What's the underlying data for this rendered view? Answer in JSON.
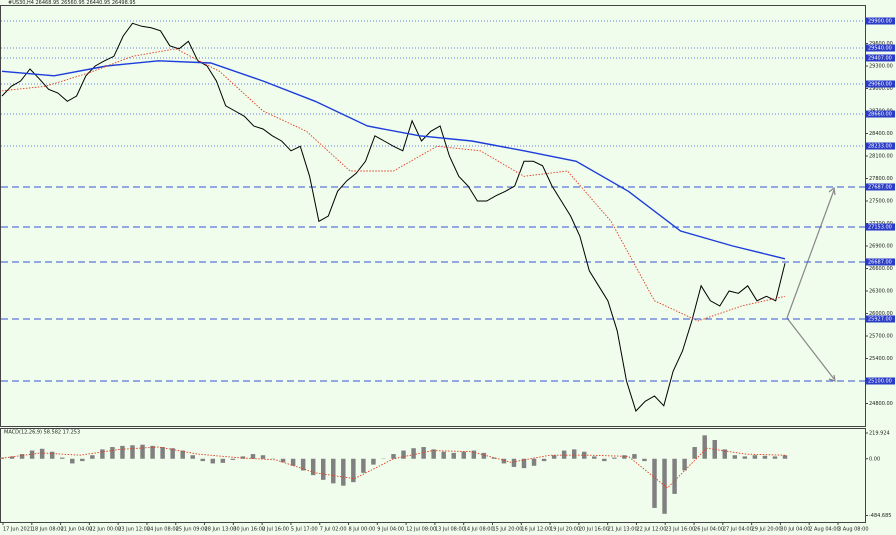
{
  "chart_data": [
    {
      "type": "line",
      "title": "#US30,H4 26468.95 26560.95 26440.95 26498.95",
      "ylim": [
        24500,
        30100
      ],
      "yticks": [
        {
          "value": 24800,
          "label": "24800.00"
        },
        {
          "value": 25100,
          "label": "25100.00"
        },
        {
          "value": 25400,
          "label": "25400.00"
        },
        {
          "value": 25700,
          "label": "25700.00"
        },
        {
          "value": 26000,
          "label": "26000.00"
        },
        {
          "value": 26300,
          "label": "26300.00"
        },
        {
          "value": 26600,
          "label": "26600.00"
        },
        {
          "value": 26900,
          "label": "26900.00"
        },
        {
          "value": 27200,
          "label": "27200.00"
        },
        {
          "value": 27500,
          "label": "27500.00"
        },
        {
          "value": 27800,
          "label": "27800.00"
        },
        {
          "value": 28100,
          "label": "28100.00"
        },
        {
          "value": 28400,
          "label": "28400.00"
        },
        {
          "value": 28700,
          "label": "28700.00"
        },
        {
          "value": 29000,
          "label": "29000.00"
        },
        {
          "value": 29300,
          "label": "29300.00"
        },
        {
          "value": 29600,
          "label": "29600.00"
        },
        {
          "value": 29900,
          "label": "29900.00"
        }
      ],
      "series": [
        {
          "color": "#000000",
          "values": [
            28900,
            29030,
            29100,
            29260,
            29130,
            28990,
            28940,
            28830,
            28900,
            29170,
            29300,
            29370,
            29430,
            29700,
            29870,
            29830,
            29810,
            29770,
            29570,
            29530,
            29630,
            29370,
            29300,
            29100,
            28770,
            28700,
            28630,
            28500,
            28460,
            28370,
            28300,
            28170,
            28230,
            27830,
            27230,
            27300,
            27630,
            27770,
            27870,
            28030,
            28370,
            28300,
            28230,
            28170,
            28570,
            28300,
            28430,
            28500,
            28100,
            27830,
            27700,
            27500,
            27500,
            27570,
            27630,
            27700,
            28030,
            28030,
            27970,
            27700,
            27500,
            27300,
            27030,
            26570,
            26370,
            26170,
            25770,
            25100,
            24700,
            24830,
            24900,
            24770,
            25230,
            25500,
            25900,
            26370,
            26170,
            26100,
            26300,
            26270,
            26370,
            26170,
            26230,
            26170,
            26670
          ]
        },
        {
          "color": "#1c3ddb",
          "values": [
            29230,
            29170,
            29300,
            29370,
            29340,
            29100,
            28830,
            28500,
            28370,
            28300,
            28170,
            28030,
            27630,
            27100,
            26900,
            26730
          ]
        },
        {
          "color": "#e23b1e",
          "dash": true,
          "values": [
            28970,
            29030,
            29210,
            29430,
            29530,
            29230,
            28700,
            28430,
            27900,
            27900,
            28230,
            28170,
            27830,
            27900,
            27230,
            26170,
            25900,
            26100,
            26230
          ]
        }
      ],
      "levels": [
        {
          "value": 29900,
          "label": "29900.00",
          "style": "dotted"
        },
        {
          "value": 29540,
          "label": "29540.00",
          "style": "dotted"
        },
        {
          "value": 29407,
          "label": "29407.00",
          "style": "dotted"
        },
        {
          "value": 29060,
          "label": "29060.00",
          "style": "dotted"
        },
        {
          "value": 28660,
          "label": "28660.00",
          "style": "dotted"
        },
        {
          "value": 28233,
          "label": "28233.00",
          "style": "dotted"
        },
        {
          "value": 27687,
          "label": "27687.00",
          "style": "dashed"
        },
        {
          "value": 27153,
          "label": "27153.00",
          "style": "dashed"
        },
        {
          "value": 26687,
          "label": "26687.00",
          "style": "dashed"
        },
        {
          "value": 25927,
          "label": "25927.00",
          "style": "dashed"
        },
        {
          "value": 25100,
          "label": "25100.00",
          "style": "dashed"
        }
      ]
    },
    {
      "type": "bar",
      "title": "MACD(12,26,9) 58.582 17.253",
      "ylim": [
        -540,
        254
      ],
      "yticks": [
        219.924,
        {
          "value": 0,
          "label": "0.00"
        },
        -484.685
      ],
      "color": "#808080",
      "values": [
        10,
        20,
        40,
        70,
        85,
        60,
        10,
        -40,
        -20,
        30,
        80,
        100,
        110,
        115,
        120,
        110,
        100,
        90,
        70,
        30,
        -20,
        -40,
        -35,
        -10,
        20,
        40,
        30,
        0,
        -30,
        -60,
        -100,
        -140,
        -180,
        -210,
        -230,
        -200,
        -120,
        -50,
        0,
        40,
        70,
        90,
        100,
        80,
        60,
        50,
        60,
        70,
        50,
        10,
        -40,
        -70,
        -80,
        -60,
        -20,
        30,
        70,
        80,
        60,
        20,
        -20,
        10,
        30,
        40,
        -20,
        -420,
        -470,
        -300,
        -100,
        100,
        200,
        160,
        80,
        30,
        20,
        30,
        25,
        20,
        30
      ],
      "signal": {
        "color": "#e23b1e",
        "values": [
          5,
          50,
          30,
          80,
          100,
          40,
          10,
          -10,
          -120,
          -170,
          0,
          70,
          60,
          -30,
          30,
          30,
          20,
          -250,
          90,
          40,
          30
        ]
      },
      "x_labels": [
        "17 Jun 2021",
        "18 Jun 08:00",
        "21 Jun 04:00",
        "22 Jun 00:00",
        "23 Jun 12:00",
        "24 Jun 08:00",
        "25 Jun 09:00",
        "28 Jun 13:00",
        "30 Jun 16:00",
        "2 Jul 16:00",
        "5 Jul 17:00",
        "7 Jul 02:00",
        "8 Jul 00:00",
        "9 Jul 04:00",
        "12 Jul 08:00",
        "13 Jul 08:00",
        "14 Jul 08:00",
        "15 Jul 20:00",
        "16 Jul 12:00",
        "19 Jul 20:00",
        "20 Jul 16:00",
        "21 Jul 13:00",
        "22 Jul 12:00",
        "23 Jul 16:00",
        "26 Jul 04:00",
        "27 Jul 04:00",
        "29 Jul 20:00",
        "30 Jul 04:00",
        "2 Aug 04:00",
        "3 Aug 08:00"
      ]
    }
  ]
}
